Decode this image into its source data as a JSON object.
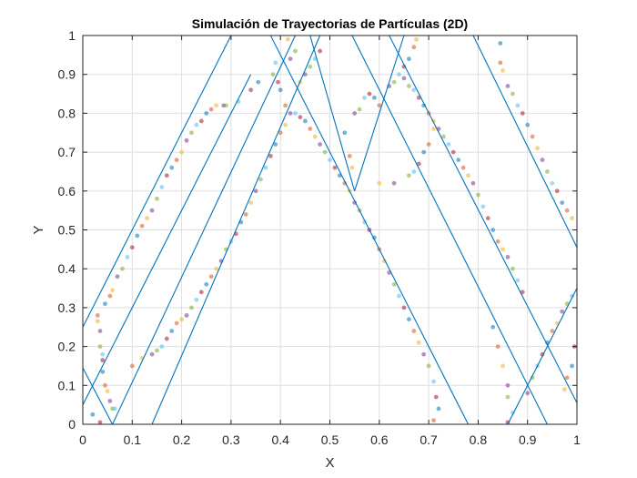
{
  "chart_data": {
    "type": "line",
    "title": "Simulación de Trayectorias de Partículas (2D)",
    "xlabel": "X",
    "ylabel": "Y",
    "xlim": [
      0,
      1
    ],
    "ylim": [
      0,
      1
    ],
    "xticks": [
      "0",
      "0.1",
      "0.2",
      "0.3",
      "0.4",
      "0.5",
      "0.6",
      "0.7",
      "0.8",
      "0.9",
      "1"
    ],
    "yticks": [
      "0",
      "0.1",
      "0.2",
      "0.3",
      "0.4",
      "0.5",
      "0.6",
      "0.7",
      "0.8",
      "0.9",
      "1"
    ],
    "grid": true,
    "line_color": "#0072BD",
    "series": [
      {
        "values": [
          [
            0,
            0.25
          ],
          [
            0.3,
            1.0
          ]
        ]
      },
      {
        "values": [
          [
            0,
            0.05
          ],
          [
            0.34,
            0.9
          ]
        ]
      },
      {
        "values": [
          [
            0,
            0.145
          ],
          [
            0.06,
            0.0
          ]
        ]
      },
      {
        "values": [
          [
            0.06,
            0.0
          ],
          [
            0.43,
            1.0
          ]
        ]
      },
      {
        "values": [
          [
            0.14,
            0.0
          ],
          [
            0.48,
            1.0
          ]
        ]
      },
      {
        "values": [
          [
            0.38,
            1.0
          ],
          [
            0.78,
            0.0
          ]
        ]
      },
      {
        "values": [
          [
            0.46,
            1.0
          ],
          [
            0.55,
            0.6
          ]
        ]
      },
      {
        "values": [
          [
            0.55,
            0.6
          ],
          [
            0.65,
            1.0
          ]
        ]
      },
      {
        "values": [
          [
            0.545,
            1.0
          ],
          [
            0.94,
            0.0
          ]
        ]
      },
      {
        "values": [
          [
            0.62,
            1.0
          ],
          [
            1.0,
            0.055
          ]
        ]
      },
      {
        "values": [
          [
            0.79,
            1.0
          ],
          [
            1.0,
            0.455
          ]
        ]
      },
      {
        "values": [
          [
            0.86,
            0.0
          ],
          [
            1.0,
            0.35
          ]
        ]
      }
    ],
    "scatter_colors": [
      "#0072BD",
      "#D95319",
      "#EDB120",
      "#7E2F8E",
      "#77AC30",
      "#4DBEEE",
      "#A2142F"
    ],
    "scatter": [
      [
        0.02,
        0.025
      ],
      [
        0.03,
        0.28
      ],
      [
        0.03,
        0.265
      ],
      [
        0.035,
        0.24
      ],
      [
        0.035,
        0.2
      ],
      [
        0.04,
        0.18
      ],
      [
        0.04,
        0.165
      ],
      [
        0.04,
        0.135
      ],
      [
        0.045,
        0.1
      ],
      [
        0.05,
        0.085
      ],
      [
        0.055,
        0.06
      ],
      [
        0.06,
        0.04
      ],
      [
        0.065,
        0.04
      ],
      [
        0.035,
        0.005
      ],
      [
        0.045,
        0.31
      ],
      [
        0.055,
        0.33
      ],
      [
        0.06,
        0.345
      ],
      [
        0.07,
        0.38
      ],
      [
        0.08,
        0.4
      ],
      [
        0.09,
        0.43
      ],
      [
        0.1,
        0.455
      ],
      [
        0.11,
        0.485
      ],
      [
        0.12,
        0.51
      ],
      [
        0.13,
        0.53
      ],
      [
        0.14,
        0.55
      ],
      [
        0.15,
        0.58
      ],
      [
        0.16,
        0.61
      ],
      [
        0.17,
        0.64
      ],
      [
        0.18,
        0.66
      ],
      [
        0.19,
        0.68
      ],
      [
        0.2,
        0.7
      ],
      [
        0.21,
        0.73
      ],
      [
        0.22,
        0.75
      ],
      [
        0.23,
        0.77
      ],
      [
        0.24,
        0.78
      ],
      [
        0.25,
        0.8
      ],
      [
        0.26,
        0.81
      ],
      [
        0.27,
        0.82
      ],
      [
        0.285,
        0.82
      ],
      [
        0.29,
        0.82
      ],
      [
        0.315,
        0.83
      ],
      [
        0.34,
        0.86
      ],
      [
        0.355,
        0.88
      ],
      [
        0.1,
        0.15
      ],
      [
        0.12,
        0.17
      ],
      [
        0.14,
        0.18
      ],
      [
        0.15,
        0.19
      ],
      [
        0.16,
        0.2
      ],
      [
        0.17,
        0.22
      ],
      [
        0.18,
        0.24
      ],
      [
        0.19,
        0.26
      ],
      [
        0.2,
        0.27
      ],
      [
        0.21,
        0.28
      ],
      [
        0.22,
        0.3
      ],
      [
        0.23,
        0.32
      ],
      [
        0.24,
        0.34
      ],
      [
        0.25,
        0.36
      ],
      [
        0.26,
        0.38
      ],
      [
        0.27,
        0.4
      ],
      [
        0.28,
        0.42
      ],
      [
        0.29,
        0.45
      ],
      [
        0.3,
        0.47
      ],
      [
        0.31,
        0.49
      ],
      [
        0.32,
        0.52
      ],
      [
        0.33,
        0.54
      ],
      [
        0.34,
        0.57
      ],
      [
        0.35,
        0.6
      ],
      [
        0.36,
        0.63
      ],
      [
        0.37,
        0.66
      ],
      [
        0.38,
        0.69
      ],
      [
        0.39,
        0.72
      ],
      [
        0.4,
        0.75
      ],
      [
        0.41,
        0.77
      ],
      [
        0.42,
        0.8
      ],
      [
        0.385,
        0.9
      ],
      [
        0.39,
        0.93
      ],
      [
        0.395,
        0.88
      ],
      [
        0.4,
        0.86
      ],
      [
        0.41,
        0.82
      ],
      [
        0.415,
        0.99
      ],
      [
        0.42,
        0.94
      ],
      [
        0.43,
        0.96
      ],
      [
        0.43,
        0.8
      ],
      [
        0.44,
        0.79
      ],
      [
        0.45,
        0.78
      ],
      [
        0.46,
        0.76
      ],
      [
        0.47,
        0.74
      ],
      [
        0.48,
        0.72
      ],
      [
        0.49,
        0.7
      ],
      [
        0.5,
        0.68
      ],
      [
        0.51,
        0.66
      ],
      [
        0.52,
        0.64
      ],
      [
        0.53,
        0.62
      ],
      [
        0.54,
        0.6
      ],
      [
        0.55,
        0.57
      ],
      [
        0.56,
        0.55
      ],
      [
        0.57,
        0.52
      ],
      [
        0.58,
        0.5
      ],
      [
        0.59,
        0.48
      ],
      [
        0.6,
        0.45
      ],
      [
        0.61,
        0.42
      ],
      [
        0.62,
        0.39
      ],
      [
        0.63,
        0.36
      ],
      [
        0.64,
        0.33
      ],
      [
        0.65,
        0.3
      ],
      [
        0.66,
        0.27
      ],
      [
        0.67,
        0.24
      ],
      [
        0.68,
        0.21
      ],
      [
        0.69,
        0.18
      ],
      [
        0.7,
        0.15
      ],
      [
        0.71,
        0.11
      ],
      [
        0.715,
        0.07
      ],
      [
        0.72,
        0.04
      ],
      [
        0.71,
        0.01
      ],
      [
        0.44,
        0.88
      ],
      [
        0.45,
        0.9
      ],
      [
        0.46,
        0.92
      ],
      [
        0.47,
        0.94
      ],
      [
        0.48,
        0.96
      ],
      [
        0.53,
        0.75
      ],
      [
        0.54,
        0.69
      ],
      [
        0.545,
        0.66
      ],
      [
        0.55,
        0.8
      ],
      [
        0.56,
        0.81
      ],
      [
        0.57,
        0.84
      ],
      [
        0.58,
        0.85
      ],
      [
        0.59,
        0.84
      ],
      [
        0.6,
        0.82
      ],
      [
        0.6,
        0.62
      ],
      [
        0.63,
        0.62
      ],
      [
        0.66,
        0.64
      ],
      [
        0.67,
        0.65
      ],
      [
        0.68,
        0.67
      ],
      [
        0.69,
        0.7
      ],
      [
        0.7,
        0.72
      ],
      [
        0.71,
        0.76
      ],
      [
        0.62,
        0.87
      ],
      [
        0.63,
        0.88
      ],
      [
        0.64,
        0.9
      ],
      [
        0.65,
        0.92
      ],
      [
        0.66,
        0.94
      ],
      [
        0.67,
        0.97
      ],
      [
        0.675,
        0.99
      ],
      [
        0.65,
        0.89
      ],
      [
        0.66,
        0.87
      ],
      [
        0.67,
        0.86
      ],
      [
        0.68,
        0.84
      ],
      [
        0.69,
        0.82
      ],
      [
        0.7,
        0.8
      ],
      [
        0.71,
        0.78
      ],
      [
        0.72,
        0.76
      ],
      [
        0.73,
        0.74
      ],
      [
        0.74,
        0.72
      ],
      [
        0.75,
        0.7
      ],
      [
        0.76,
        0.68
      ],
      [
        0.77,
        0.66
      ],
      [
        0.78,
        0.64
      ],
      [
        0.79,
        0.62
      ],
      [
        0.8,
        0.59
      ],
      [
        0.81,
        0.56
      ],
      [
        0.82,
        0.53
      ],
      [
        0.83,
        0.5
      ],
      [
        0.84,
        0.47
      ],
      [
        0.85,
        0.45
      ],
      [
        0.86,
        0.43
      ],
      [
        0.87,
        0.4
      ],
      [
        0.88,
        0.37
      ],
      [
        0.89,
        0.34
      ],
      [
        0.83,
        0.25
      ],
      [
        0.84,
        0.2
      ],
      [
        0.85,
        0.15
      ],
      [
        0.86,
        0.1
      ],
      [
        0.86,
        0.07
      ],
      [
        0.87,
        0.03
      ],
      [
        0.86,
        0.005
      ],
      [
        0.845,
        0.98
      ],
      [
        0.845,
        0.93
      ],
      [
        0.85,
        0.91
      ],
      [
        0.86,
        0.87
      ],
      [
        0.87,
        0.85
      ],
      [
        0.88,
        0.82
      ],
      [
        0.89,
        0.8
      ],
      [
        0.9,
        0.77
      ],
      [
        0.91,
        0.74
      ],
      [
        0.92,
        0.71
      ],
      [
        0.93,
        0.68
      ],
      [
        0.94,
        0.65
      ],
      [
        0.95,
        0.62
      ],
      [
        0.96,
        0.6
      ],
      [
        0.97,
        0.57
      ],
      [
        0.98,
        0.55
      ],
      [
        0.99,
        0.53
      ],
      [
        0.9,
        0.08
      ],
      [
        0.91,
        0.12
      ],
      [
        0.92,
        0.15
      ],
      [
        0.93,
        0.18
      ],
      [
        0.94,
        0.21
      ],
      [
        0.95,
        0.24
      ],
      [
        0.96,
        0.26
      ],
      [
        0.97,
        0.29
      ],
      [
        0.98,
        0.31
      ],
      [
        0.99,
        0.33
      ],
      [
        0.995,
        0.2
      ],
      [
        0.99,
        0.15
      ],
      [
        0.98,
        0.12
      ],
      [
        0.975,
        0.09
      ]
    ]
  }
}
